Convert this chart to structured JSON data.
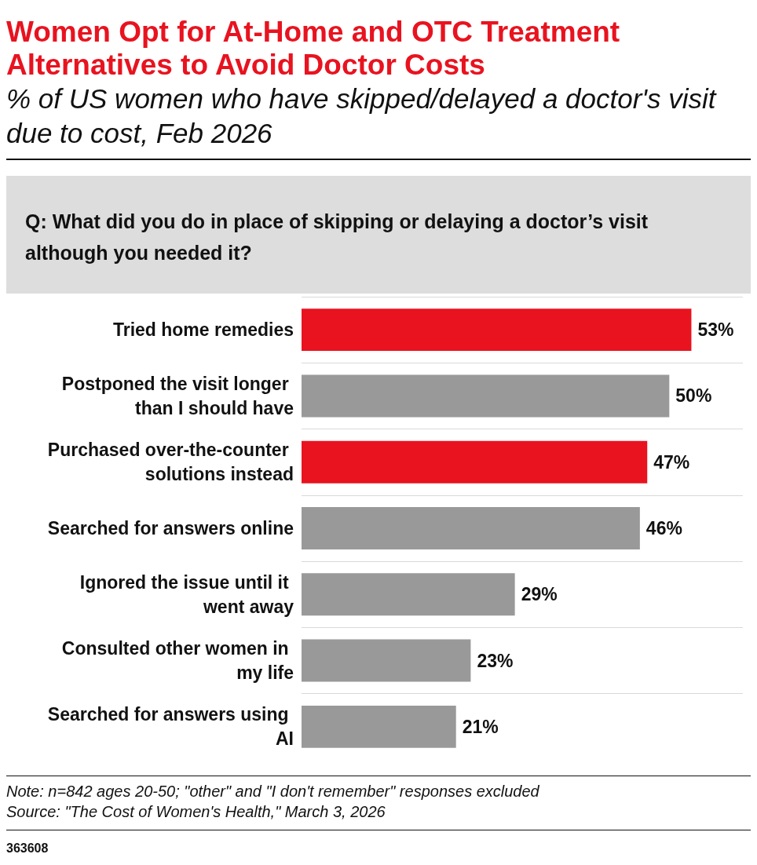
{
  "chart_data": {
    "type": "bar",
    "orientation": "horizontal",
    "title": "Women Opt for At-Home and OTC Treatment Alternatives to Avoid Doctor Costs",
    "subtitle": "% of US women who have skipped/delayed a doctor's visit due to cost, Feb 2026",
    "annotations": [
      "Q: What did you do in place of skipping or delaying a doctor’s visit although you needed it?",
      "Note: n=842 ages 20-50; \"other\" and \"I don't remember\" responses excluded",
      "Source: \"The Cost of Women's Health,\" March 3, 2026",
      "363608"
    ],
    "categories": [
      "Tried home remedies",
      "Postponed the visit longer than I should have",
      "Purchased over-the-counter solutions instead",
      "Searched for answers online",
      "Ignored the issue until it went away",
      "Consulted other women in my life",
      "Searched for answers using AI"
    ],
    "values": [
      53,
      50,
      47,
      46,
      29,
      23,
      21
    ],
    "value_labels": [
      "53%",
      "50%",
      "47%",
      "46%",
      "29%",
      "23%",
      "21%"
    ],
    "colors": [
      "#e8131f",
      "#999999",
      "#e8131f",
      "#999999",
      "#999999",
      "#999999",
      "#999999"
    ],
    "grid": "y"
  }
}
